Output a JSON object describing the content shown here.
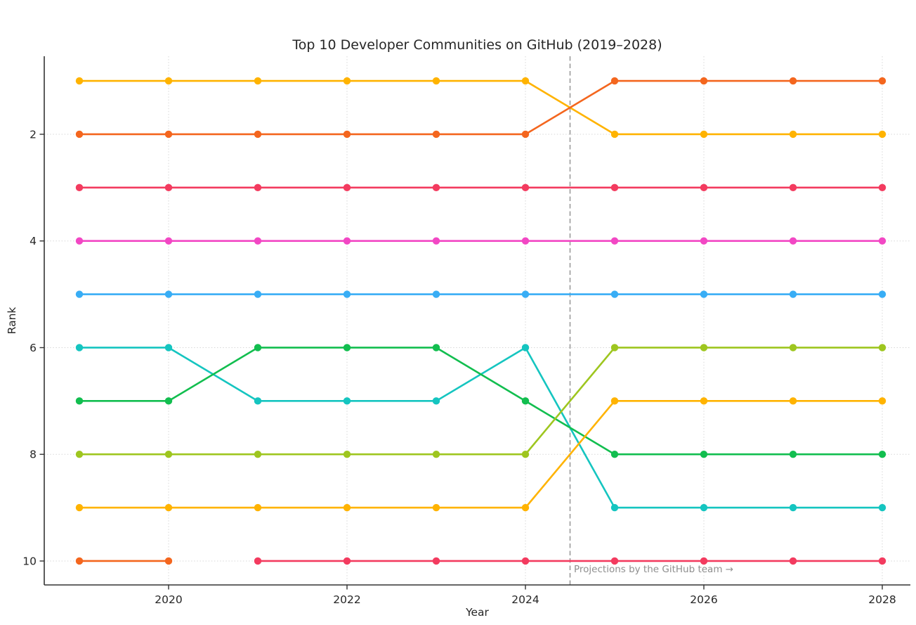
{
  "figure": {
    "background": "#ffffff",
    "text_color": "#262626"
  },
  "chart_data": {
    "type": "line",
    "variant": "bump-rank-chart",
    "title": "Top 10 Developer Communities on GitHub (2019–2028)",
    "xlabel": "Year",
    "ylabel": "Rank",
    "xlim": [
      2018.6,
      2028.3
    ],
    "ylim": [
      10.5,
      0.5
    ],
    "y_axis_inverted": true,
    "xticks": [
      2020,
      2022,
      2024,
      2026,
      2028
    ],
    "yticks": [
      2,
      4,
      6,
      8,
      10
    ],
    "grid": "dotted gridlines at x and y tick positions",
    "legend": "none",
    "marker": "filled circle at every data point",
    "annotation": {
      "x": 2024.5,
      "style": "dashed vertical line",
      "text": "Projections by the GitHub team →",
      "text_color": "#8f8f8f",
      "line_color": "#909090"
    },
    "series": [
      {
        "id": "s01",
        "color": "#FFB300",
        "x": [
          2019,
          2020,
          2021,
          2022,
          2023,
          2024,
          2025,
          2026,
          2027,
          2028
        ],
        "y": [
          1,
          1,
          1,
          1,
          1,
          1,
          2,
          2,
          2,
          2
        ]
      },
      {
        "id": "s02",
        "color": "#F4661E",
        "x": [
          2019,
          2020,
          2021,
          2022,
          2023,
          2024,
          2025,
          2026,
          2027,
          2028
        ],
        "y": [
          2,
          2,
          2,
          2,
          2,
          2,
          1,
          1,
          1,
          1
        ]
      },
      {
        "id": "s03",
        "color": "#F33B5F",
        "x": [
          2019,
          2020,
          2021,
          2022,
          2023,
          2024,
          2025,
          2026,
          2027,
          2028
        ],
        "y": [
          3,
          3,
          3,
          3,
          3,
          3,
          3,
          3,
          3,
          3
        ]
      },
      {
        "id": "s04",
        "color": "#F247C4",
        "x": [
          2019,
          2020,
          2021,
          2022,
          2023,
          2024,
          2025,
          2026,
          2027,
          2028
        ],
        "y": [
          4,
          4,
          4,
          4,
          4,
          4,
          4,
          4,
          4,
          4
        ]
      },
      {
        "id": "s05",
        "color": "#38ADF5",
        "x": [
          2019,
          2020,
          2021,
          2022,
          2023,
          2024,
          2025,
          2026,
          2027,
          2028
        ],
        "y": [
          5,
          5,
          5,
          5,
          5,
          5,
          5,
          5,
          5,
          5
        ]
      },
      {
        "id": "s06",
        "color": "#15C5C0",
        "x": [
          2019,
          2020,
          2021,
          2022,
          2023,
          2024,
          2025,
          2026,
          2027,
          2028
        ],
        "y": [
          6,
          6,
          7,
          7,
          7,
          6,
          9,
          9,
          9,
          9
        ]
      },
      {
        "id": "s07",
        "color": "#12BE4F",
        "x": [
          2019,
          2020,
          2021,
          2022,
          2023,
          2024,
          2025,
          2026,
          2027,
          2028
        ],
        "y": [
          7,
          7,
          6,
          6,
          6,
          7,
          8,
          8,
          8,
          8
        ]
      },
      {
        "id": "s08",
        "color": "#9EC61F",
        "x": [
          2019,
          2020,
          2021,
          2022,
          2023,
          2024,
          2025,
          2026,
          2027,
          2028
        ],
        "y": [
          8,
          8,
          8,
          8,
          8,
          8,
          6,
          6,
          6,
          6
        ]
      },
      {
        "id": "s09",
        "color": "#FFB300",
        "x": [
          2019,
          2020,
          2021,
          2022,
          2023,
          2024,
          2025,
          2026,
          2027,
          2028
        ],
        "y": [
          9,
          9,
          9,
          9,
          9,
          9,
          7,
          7,
          7,
          7
        ]
      },
      {
        "id": "s10",
        "color": "#F4661E",
        "x": [
          2019,
          2020
        ],
        "y": [
          10,
          10
        ]
      },
      {
        "id": "s11",
        "color": "#F33B5F",
        "x": [
          2021,
          2022,
          2023,
          2024,
          2025,
          2026,
          2027,
          2028
        ],
        "y": [
          10,
          10,
          10,
          10,
          10,
          10,
          10,
          10
        ]
      }
    ]
  }
}
